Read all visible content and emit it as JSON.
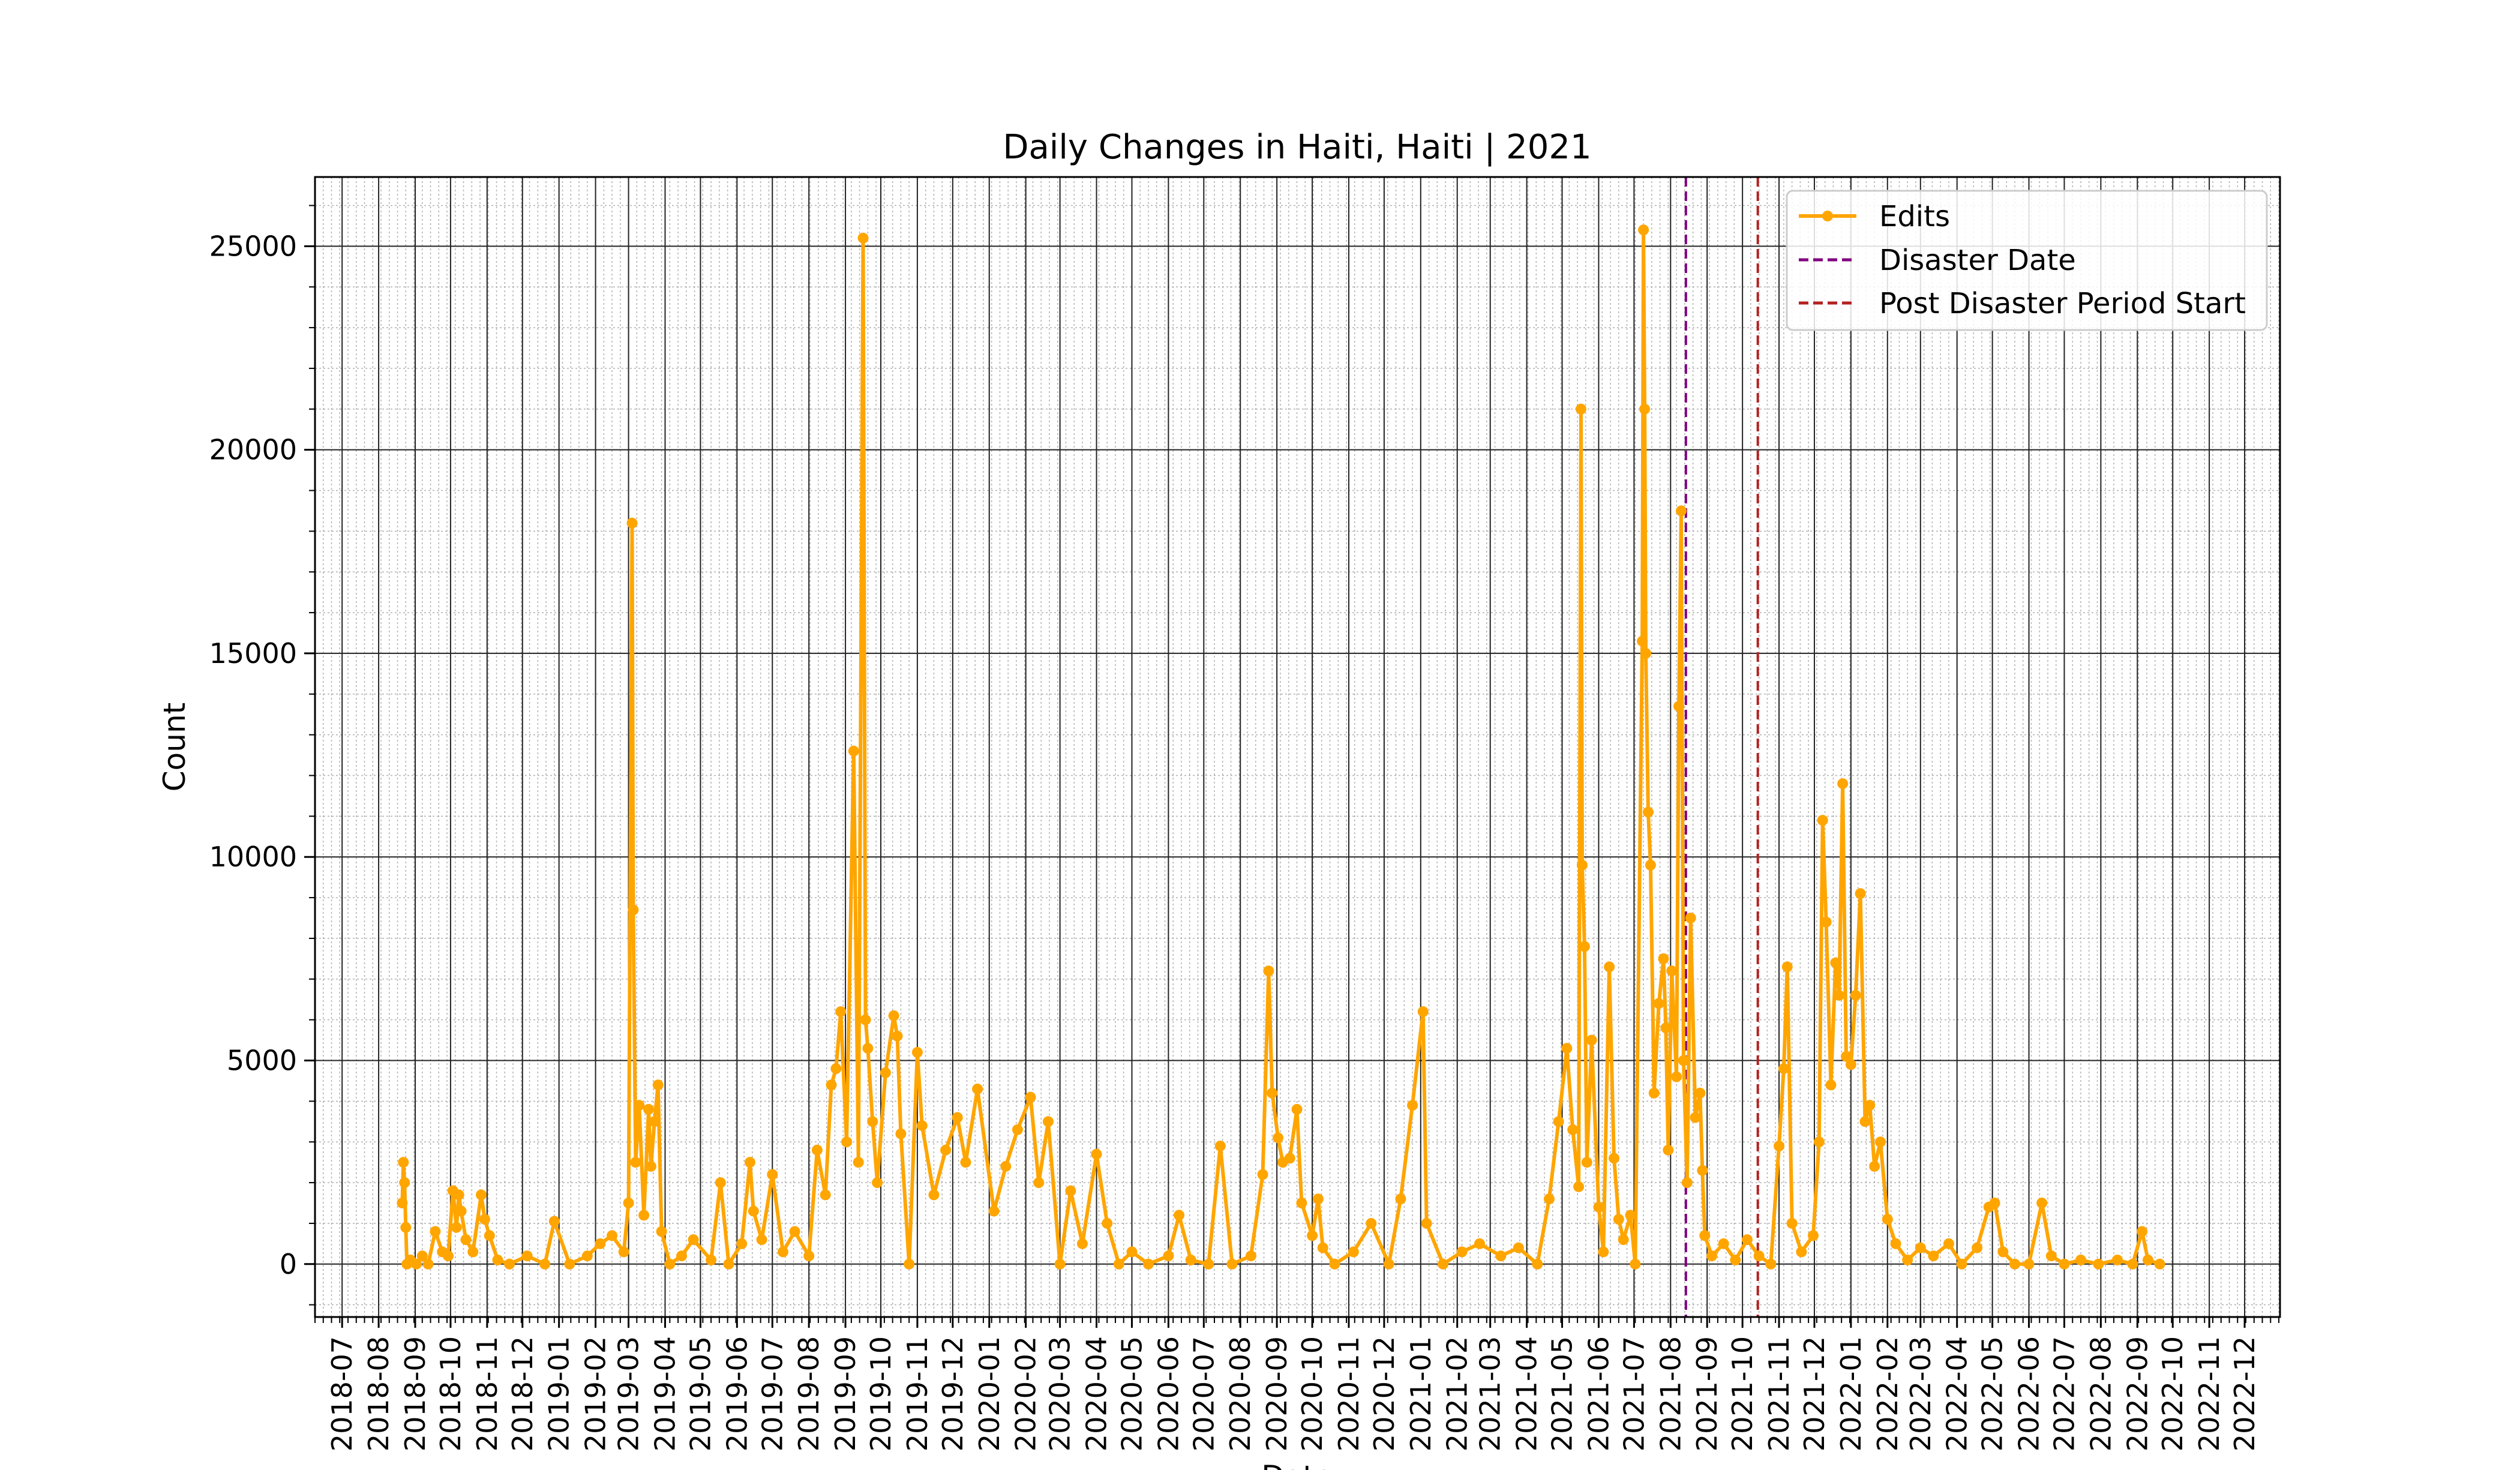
{
  "chart_data": {
    "type": "line",
    "title": "Daily Changes in Haiti, Haiti | 2021",
    "xlabel": "Date",
    "ylabel": "Count",
    "xlim": [
      "2018-06-08",
      "2022-12-31"
    ],
    "ylim": [
      -1300,
      26700
    ],
    "yticks": [
      0,
      5000,
      10000,
      15000,
      20000,
      25000
    ],
    "xticks": [
      "2018-07",
      "2018-08",
      "2018-09",
      "2018-10",
      "2018-11",
      "2018-12",
      "2019-01",
      "2019-02",
      "2019-03",
      "2019-04",
      "2019-05",
      "2019-06",
      "2019-07",
      "2019-08",
      "2019-09",
      "2019-10",
      "2019-11",
      "2019-12",
      "2020-01",
      "2020-02",
      "2020-03",
      "2020-04",
      "2020-05",
      "2020-06",
      "2020-07",
      "2020-08",
      "2020-09",
      "2020-10",
      "2020-11",
      "2020-12",
      "2021-01",
      "2021-02",
      "2021-03",
      "2021-04",
      "2021-05",
      "2021-06",
      "2021-07",
      "2021-08",
      "2021-09",
      "2021-10",
      "2021-11",
      "2021-12",
      "2022-01",
      "2022-02",
      "2022-03",
      "2022-04",
      "2022-05",
      "2022-06",
      "2022-07",
      "2022-08",
      "2022-09",
      "2022-10",
      "2022-11",
      "2022-12"
    ],
    "grid": true,
    "legend_position": "top-right",
    "series": [
      {
        "name": "Edits",
        "color": "#FFA500",
        "points": [
          [
            "2018-08-21",
            1500
          ],
          [
            "2018-08-22",
            2500
          ],
          [
            "2018-08-23",
            2000
          ],
          [
            "2018-08-24",
            900
          ],
          [
            "2018-08-25",
            0
          ],
          [
            "2018-08-28",
            100
          ],
          [
            "2018-09-02",
            0
          ],
          [
            "2018-09-07",
            200
          ],
          [
            "2018-09-12",
            0
          ],
          [
            "2018-09-18",
            800
          ],
          [
            "2018-09-24",
            300
          ],
          [
            "2018-09-29",
            200
          ],
          [
            "2018-10-03",
            1800
          ],
          [
            "2018-10-06",
            900
          ],
          [
            "2018-10-08",
            1700
          ],
          [
            "2018-10-10",
            1300
          ],
          [
            "2018-10-14",
            600
          ],
          [
            "2018-10-20",
            300
          ],
          [
            "2018-10-27",
            1700
          ],
          [
            "2018-10-30",
            1100
          ],
          [
            "2018-11-03",
            700
          ],
          [
            "2018-11-10",
            100
          ],
          [
            "2018-11-20",
            0
          ],
          [
            "2018-12-05",
            200
          ],
          [
            "2018-12-20",
            0
          ],
          [
            "2018-12-28",
            1050
          ],
          [
            "2019-01-10",
            0
          ],
          [
            "2019-01-25",
            200
          ],
          [
            "2019-02-05",
            500
          ],
          [
            "2019-02-15",
            700
          ],
          [
            "2019-02-25",
            300
          ],
          [
            "2019-03-01",
            1500
          ],
          [
            "2019-03-04",
            18200
          ],
          [
            "2019-03-05",
            8700
          ],
          [
            "2019-03-07",
            2500
          ],
          [
            "2019-03-10",
            3900
          ],
          [
            "2019-03-14",
            1200
          ],
          [
            "2019-03-18",
            3800
          ],
          [
            "2019-03-20",
            2400
          ],
          [
            "2019-03-23",
            3500
          ],
          [
            "2019-03-26",
            4400
          ],
          [
            "2019-03-29",
            800
          ],
          [
            "2019-04-05",
            0
          ],
          [
            "2019-04-15",
            200
          ],
          [
            "2019-04-25",
            600
          ],
          [
            "2019-05-10",
            100
          ],
          [
            "2019-05-18",
            2000
          ],
          [
            "2019-05-25",
            0
          ],
          [
            "2019-06-05",
            500
          ],
          [
            "2019-06-12",
            2500
          ],
          [
            "2019-06-15",
            1300
          ],
          [
            "2019-06-22",
            600
          ],
          [
            "2019-07-01",
            2200
          ],
          [
            "2019-07-10",
            300
          ],
          [
            "2019-07-20",
            800
          ],
          [
            "2019-08-01",
            200
          ],
          [
            "2019-08-08",
            2800
          ],
          [
            "2019-08-15",
            1700
          ],
          [
            "2019-08-20",
            4400
          ],
          [
            "2019-08-24",
            4800
          ],
          [
            "2019-08-28",
            6200
          ],
          [
            "2019-09-02",
            3000
          ],
          [
            "2019-09-08",
            12600
          ],
          [
            "2019-09-12",
            2500
          ],
          [
            "2019-09-16",
            25200
          ],
          [
            "2019-09-18",
            6000
          ],
          [
            "2019-09-20",
            5300
          ],
          [
            "2019-09-24",
            3500
          ],
          [
            "2019-09-28",
            2000
          ],
          [
            "2019-10-05",
            4700
          ],
          [
            "2019-10-12",
            6100
          ],
          [
            "2019-10-15",
            5600
          ],
          [
            "2019-10-18",
            3200
          ],
          [
            "2019-10-25",
            0
          ],
          [
            "2019-11-01",
            5200
          ],
          [
            "2019-11-05",
            3400
          ],
          [
            "2019-11-15",
            1700
          ],
          [
            "2019-11-25",
            2800
          ],
          [
            "2019-12-05",
            3600
          ],
          [
            "2019-12-12",
            2500
          ],
          [
            "2019-12-22",
            4300
          ],
          [
            "2020-01-05",
            1300
          ],
          [
            "2020-01-15",
            2400
          ],
          [
            "2020-01-25",
            3300
          ],
          [
            "2020-02-05",
            4100
          ],
          [
            "2020-02-12",
            2000
          ],
          [
            "2020-02-20",
            3500
          ],
          [
            "2020-03-01",
            0
          ],
          [
            "2020-03-10",
            1800
          ],
          [
            "2020-03-20",
            500
          ],
          [
            "2020-04-01",
            2700
          ],
          [
            "2020-04-10",
            1000
          ],
          [
            "2020-04-20",
            0
          ],
          [
            "2020-05-01",
            300
          ],
          [
            "2020-05-15",
            0
          ],
          [
            "2020-06-01",
            200
          ],
          [
            "2020-06-10",
            1200
          ],
          [
            "2020-06-20",
            100
          ],
          [
            "2020-07-05",
            0
          ],
          [
            "2020-07-15",
            2900
          ],
          [
            "2020-07-25",
            0
          ],
          [
            "2020-08-10",
            200
          ],
          [
            "2020-08-20",
            2200
          ],
          [
            "2020-08-25",
            7200
          ],
          [
            "2020-08-28",
            4200
          ],
          [
            "2020-09-02",
            3100
          ],
          [
            "2020-09-06",
            2500
          ],
          [
            "2020-09-12",
            2600
          ],
          [
            "2020-09-18",
            3800
          ],
          [
            "2020-09-22",
            1500
          ],
          [
            "2020-10-01",
            700
          ],
          [
            "2020-10-06",
            1600
          ],
          [
            "2020-10-10",
            400
          ],
          [
            "2020-10-20",
            0
          ],
          [
            "2020-11-05",
            300
          ],
          [
            "2020-11-20",
            1000
          ],
          [
            "2020-12-05",
            0
          ],
          [
            "2020-12-15",
            1600
          ],
          [
            "2020-12-25",
            3900
          ],
          [
            "2021-01-03",
            6200
          ],
          [
            "2021-01-06",
            1000
          ],
          [
            "2021-01-20",
            0
          ],
          [
            "2021-02-05",
            300
          ],
          [
            "2021-02-20",
            500
          ],
          [
            "2021-03-10",
            200
          ],
          [
            "2021-03-25",
            400
          ],
          [
            "2021-04-10",
            0
          ],
          [
            "2021-04-20",
            1600
          ],
          [
            "2021-04-28",
            3500
          ],
          [
            "2021-05-05",
            5300
          ],
          [
            "2021-05-10",
            3300
          ],
          [
            "2021-05-15",
            1900
          ],
          [
            "2021-05-17",
            21000
          ],
          [
            "2021-05-18",
            9800
          ],
          [
            "2021-05-20",
            7800
          ],
          [
            "2021-05-22",
            2500
          ],
          [
            "2021-05-26",
            5500
          ],
          [
            "2021-06-01",
            1400
          ],
          [
            "2021-06-05",
            300
          ],
          [
            "2021-06-10",
            7300
          ],
          [
            "2021-06-14",
            2600
          ],
          [
            "2021-06-18",
            1100
          ],
          [
            "2021-06-22",
            600
          ],
          [
            "2021-06-28",
            1200
          ],
          [
            "2021-07-02",
            0
          ],
          [
            "2021-07-08",
            15300
          ],
          [
            "2021-07-09",
            25400
          ],
          [
            "2021-07-10",
            21000
          ],
          [
            "2021-07-11",
            15000
          ],
          [
            "2021-07-13",
            11100
          ],
          [
            "2021-07-15",
            9800
          ],
          [
            "2021-07-18",
            4200
          ],
          [
            "2021-07-22",
            6400
          ],
          [
            "2021-07-26",
            7500
          ],
          [
            "2021-07-28",
            5800
          ],
          [
            "2021-07-30",
            2800
          ],
          [
            "2021-08-02",
            7200
          ],
          [
            "2021-08-06",
            4600
          ],
          [
            "2021-08-08",
            13700
          ],
          [
            "2021-08-10",
            18500
          ],
          [
            "2021-08-12",
            5000
          ],
          [
            "2021-08-15",
            2000
          ],
          [
            "2021-08-18",
            8500
          ],
          [
            "2021-08-22",
            3600
          ],
          [
            "2021-08-26",
            4200
          ],
          [
            "2021-08-28",
            2300
          ],
          [
            "2021-08-30",
            700
          ],
          [
            "2021-09-05",
            200
          ],
          [
            "2021-09-15",
            500
          ],
          [
            "2021-09-25",
            100
          ],
          [
            "2021-10-05",
            600
          ],
          [
            "2021-10-15",
            200
          ],
          [
            "2021-10-25",
            0
          ],
          [
            "2021-11-01",
            2900
          ],
          [
            "2021-11-05",
            4800
          ],
          [
            "2021-11-08",
            7300
          ],
          [
            "2021-11-12",
            1000
          ],
          [
            "2021-11-20",
            300
          ],
          [
            "2021-11-30",
            700
          ],
          [
            "2021-12-05",
            3000
          ],
          [
            "2021-12-08",
            10900
          ],
          [
            "2021-12-11",
            8400
          ],
          [
            "2021-12-15",
            4400
          ],
          [
            "2021-12-19",
            7400
          ],
          [
            "2021-12-22",
            6600
          ],
          [
            "2021-12-25",
            11800
          ],
          [
            "2021-12-28",
            5100
          ],
          [
            "2022-01-01",
            4900
          ],
          [
            "2022-01-05",
            6600
          ],
          [
            "2022-01-09",
            9100
          ],
          [
            "2022-01-13",
            3500
          ],
          [
            "2022-01-17",
            3900
          ],
          [
            "2022-01-21",
            2400
          ],
          [
            "2022-01-26",
            3000
          ],
          [
            "2022-02-01",
            1100
          ],
          [
            "2022-02-08",
            500
          ],
          [
            "2022-02-18",
            100
          ],
          [
            "2022-03-01",
            400
          ],
          [
            "2022-03-12",
            200
          ],
          [
            "2022-03-25",
            500
          ],
          [
            "2022-04-05",
            0
          ],
          [
            "2022-04-18",
            400
          ],
          [
            "2022-04-28",
            1400
          ],
          [
            "2022-05-03",
            1500
          ],
          [
            "2022-05-10",
            300
          ],
          [
            "2022-05-20",
            0
          ],
          [
            "2022-06-01",
            0
          ],
          [
            "2022-06-12",
            1500
          ],
          [
            "2022-06-20",
            200
          ],
          [
            "2022-07-01",
            0
          ],
          [
            "2022-07-15",
            100
          ],
          [
            "2022-07-30",
            0
          ],
          [
            "2022-08-15",
            100
          ],
          [
            "2022-08-28",
            0
          ],
          [
            "2022-09-05",
            800
          ],
          [
            "2022-09-10",
            100
          ],
          [
            "2022-09-20",
            0
          ]
        ]
      },
      {
        "name": "Disaster Date",
        "color": "#800080",
        "x": "2021-08-14"
      },
      {
        "name": "Post Disaster Period Start",
        "color": "#B22222",
        "x": "2021-10-14"
      }
    ]
  }
}
